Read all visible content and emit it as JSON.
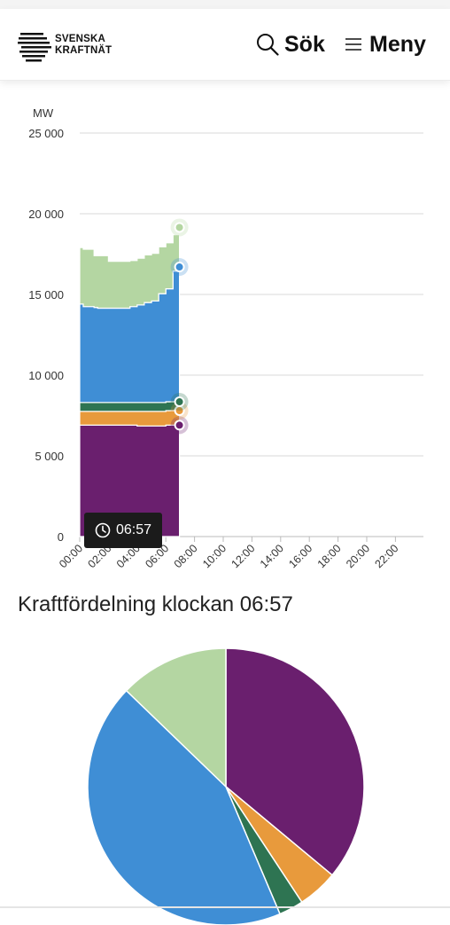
{
  "header": {
    "logo_text_line1": "SVENSKA",
    "logo_text_line2": "KRAFTNÄT",
    "search_label": "Sök",
    "menu_label": "Meny",
    "search_icon": "search-icon",
    "menu_icon": "hamburger-icon"
  },
  "tooltip": {
    "time": "06:57",
    "icon": "clock-icon"
  },
  "section": {
    "title": "Kraftfördelning klockan 06:57"
  },
  "colors": {
    "purple": "#6a1f6e",
    "orange": "#e89a3c",
    "dark_green": "#2e7452",
    "blue": "#3f8ed5",
    "light_green": "#b4d6a2"
  },
  "chart_data": [
    {
      "type": "area",
      "ylabel": "MW",
      "ylim": [
        0,
        25000
      ],
      "y_ticks": [
        "0",
        "5 000",
        "10 000",
        "15 000",
        "20 000",
        "25 000"
      ],
      "x_ticks": [
        "00:00",
        "02:00",
        "04:00",
        "06:00",
        "08:00",
        "10:00",
        "12:00",
        "14:00",
        "16:00",
        "18:00",
        "20:00",
        "22:00"
      ],
      "grid": true,
      "x": [
        0,
        0.25,
        1,
        1.25,
        2,
        2.5,
        3,
        3.5,
        4,
        4.5,
        5,
        5.5,
        6,
        6.5,
        6.95
      ],
      "series": [
        {
          "color": "#6a1f6e",
          "values": [
            6900,
            6900,
            6900,
            6900,
            6900,
            6900,
            6900,
            6900,
            6850,
            6850,
            6850,
            6850,
            6900,
            6900,
            6900
          ]
        },
        {
          "color": "#e89a3c",
          "values": [
            850,
            850,
            850,
            850,
            850,
            850,
            850,
            850,
            900,
            900,
            900,
            900,
            900,
            900,
            900
          ]
        },
        {
          "color": "#2e7452",
          "values": [
            550,
            550,
            550,
            550,
            550,
            550,
            550,
            550,
            550,
            550,
            550,
            550,
            550,
            550,
            550
          ]
        },
        {
          "color": "#3f8ed5",
          "values": [
            6100,
            5950,
            5900,
            5850,
            5850,
            5850,
            5850,
            5950,
            6050,
            6200,
            6300,
            6750,
            7000,
            8100,
            8350
          ]
        },
        {
          "color": "#b4d6a2",
          "values": [
            3500,
            3550,
            3200,
            3250,
            2900,
            2900,
            2900,
            2850,
            2900,
            2950,
            2950,
            2900,
            2850,
            2250,
            2450
          ]
        }
      ]
    },
    {
      "type": "pie",
      "slices": [
        {
          "color": "#6a1f6e",
          "value": 6900
        },
        {
          "color": "#e89a3c",
          "value": 900
        },
        {
          "color": "#2e7452",
          "value": 550
        },
        {
          "color": "#3f8ed5",
          "value": 8350
        },
        {
          "color": "#b4d6a2",
          "value": 2450
        }
      ]
    }
  ]
}
